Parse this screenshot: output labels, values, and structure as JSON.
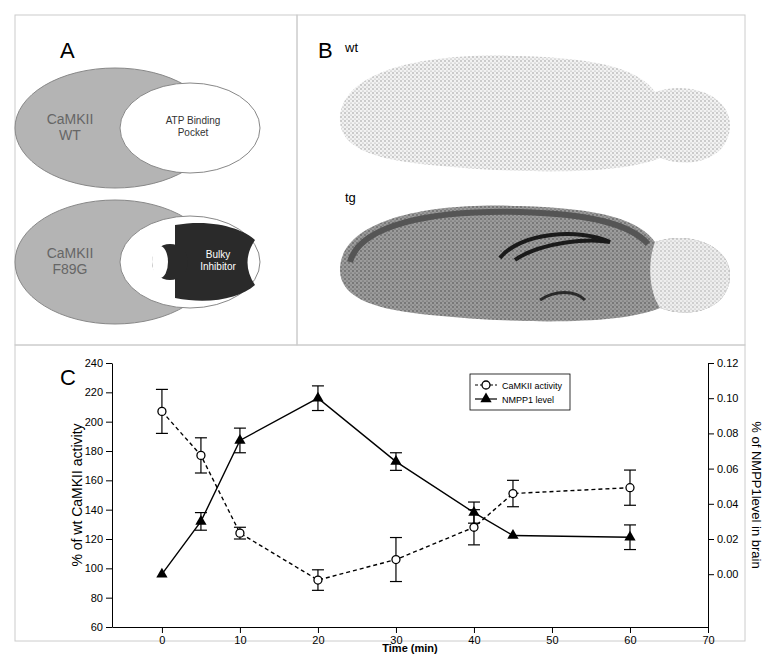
{
  "panels": {
    "A": {
      "label": "A",
      "wt": {
        "name": [
          "CaMKII",
          "WT"
        ],
        "pocket": [
          "ATP Binding",
          "Pocket"
        ]
      },
      "mutant": {
        "name": [
          "CaMKII",
          "F89G"
        ],
        "inhibitor": [
          "Bulky",
          "Inhibitor"
        ]
      }
    },
    "B": {
      "label": "B",
      "images": [
        "wt",
        "tg"
      ]
    }
  },
  "chart_data": {
    "type": "line",
    "annotations": [
      "C"
    ],
    "xlabel": "Time (min)",
    "ylabel": "% of wt CaMKII activity",
    "y2label": "% of NMPP1level in brain",
    "x": [
      0,
      5,
      10,
      20,
      30,
      40,
      45,
      60
    ],
    "xlim": [
      -6.4,
      70
    ],
    "xticks": [
      0,
      10,
      20,
      30,
      40,
      50,
      60,
      70
    ],
    "ylim": [
      60,
      240
    ],
    "yticks": [
      60,
      80,
      100,
      120,
      140,
      160,
      180,
      200,
      220,
      240
    ],
    "y2lim": [
      -0.03,
      0.12
    ],
    "y2ticks": [
      {
        "value": 0,
        "label": "0.00"
      },
      {
        "value": 0.02,
        "label": "0.02"
      },
      {
        "value": 0.04,
        "label": "0.04"
      },
      {
        "value": 0.06,
        "label": "0.06"
      },
      {
        "value": 0.08,
        "label": "0.08"
      },
      {
        "value": 0.1,
        "label": "0.10"
      },
      {
        "value": 0.12,
        "label": "0.12"
      }
    ],
    "legend": "top",
    "series": [
      {
        "name": "CaMKII activity",
        "color": "#000000",
        "marker": "circle",
        "line_style": "dashed",
        "values": [
          207,
          177,
          124,
          92,
          106,
          128,
          151,
          155
        ],
        "errors": [
          15,
          12,
          4,
          7,
          15,
          12,
          9,
          12
        ]
      },
      {
        "name": "NMPP1 level",
        "color": "#000000",
        "marker": "triangle",
        "line_style": "solid",
        "axis": "y2",
        "values": [
          0,
          0.03,
          0.076,
          0.1,
          0.064,
          0.035,
          0.022,
          0.021
        ],
        "errors": [
          null,
          0.005,
          0.007,
          0.007,
          0.005,
          0.006,
          null,
          0.007
        ]
      }
    ]
  }
}
